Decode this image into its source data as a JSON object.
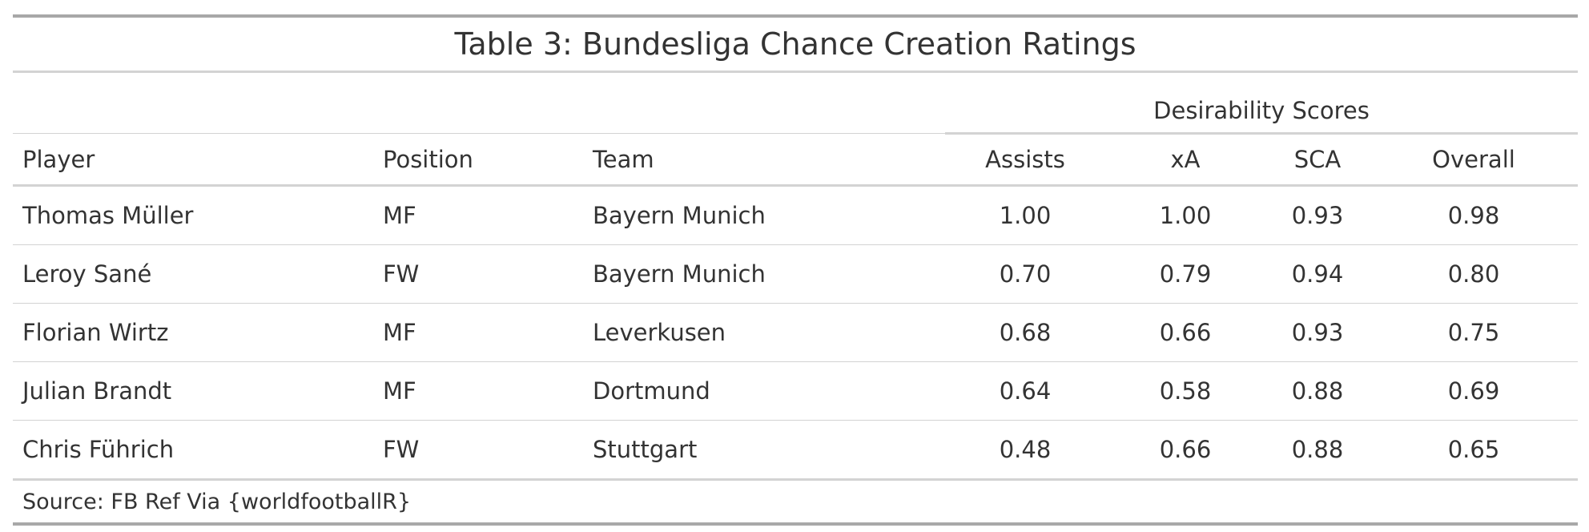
{
  "title": "Table 3: Bundesliga Chance Creation Ratings",
  "spanner": "Desirability Scores",
  "columns": {
    "player": "Player",
    "position": "Position",
    "team": "Team",
    "assists": "Assists",
    "xa": "xA",
    "sca": "SCA",
    "overall": "Overall"
  },
  "rows": [
    {
      "player": "Thomas Müller",
      "position": "MF",
      "team": "Bayern Munich",
      "assists": "1.00",
      "xa": "1.00",
      "sca": "0.93",
      "overall": "0.98"
    },
    {
      "player": "Leroy Sané",
      "position": "FW",
      "team": "Bayern Munich",
      "assists": "0.70",
      "xa": "0.79",
      "sca": "0.94",
      "overall": "0.80"
    },
    {
      "player": "Florian Wirtz",
      "position": "MF",
      "team": "Leverkusen",
      "assists": "0.68",
      "xa": "0.66",
      "sca": "0.93",
      "overall": "0.75"
    },
    {
      "player": "Julian Brandt",
      "position": "MF",
      "team": "Dortmund",
      "assists": "0.64",
      "xa": "0.58",
      "sca": "0.88",
      "overall": "0.69"
    },
    {
      "player": "Chris Führich",
      "position": "FW",
      "team": "Stuttgart",
      "assists": "0.48",
      "xa": "0.66",
      "sca": "0.88",
      "overall": "0.65"
    }
  ],
  "source": "Source: FB Ref Via {worldfootballR}"
}
